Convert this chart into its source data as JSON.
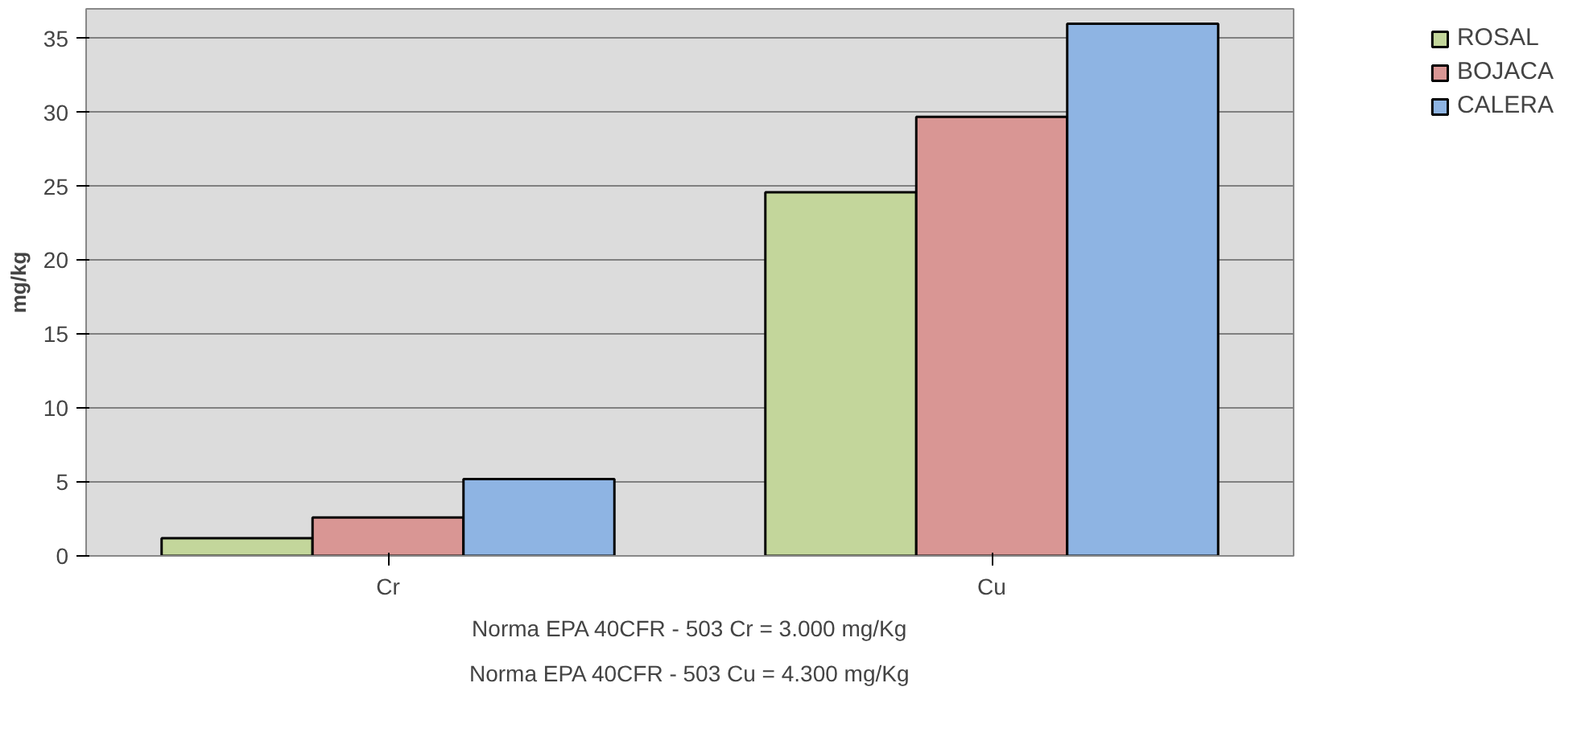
{
  "chart_data": {
    "type": "bar",
    "ylabel": "mg/kg",
    "categories": [
      "Cr",
      "Cu"
    ],
    "series": [
      {
        "name": "ROSAL",
        "color": "#c3d69b",
        "values": [
          1.2,
          24.6
        ]
      },
      {
        "name": "BOJACA",
        "color": "#d99694",
        "values": [
          2.6,
          29.7
        ]
      },
      {
        "name": "CALERA",
        "color": "#8eb4e3",
        "values": [
          5.2,
          36
        ]
      }
    ],
    "ylim": [
      0,
      37
    ],
    "yticks": [
      0,
      5,
      10,
      15,
      20,
      25,
      30,
      35
    ],
    "grid": "y",
    "legend": "right",
    "annotations": [
      "Norma EPA 40CFR - 503 Cr = 3.000 mg/Kg",
      "Norma EPA 40CFR - 503 Cu = 4.300 mg/Kg"
    ]
  }
}
